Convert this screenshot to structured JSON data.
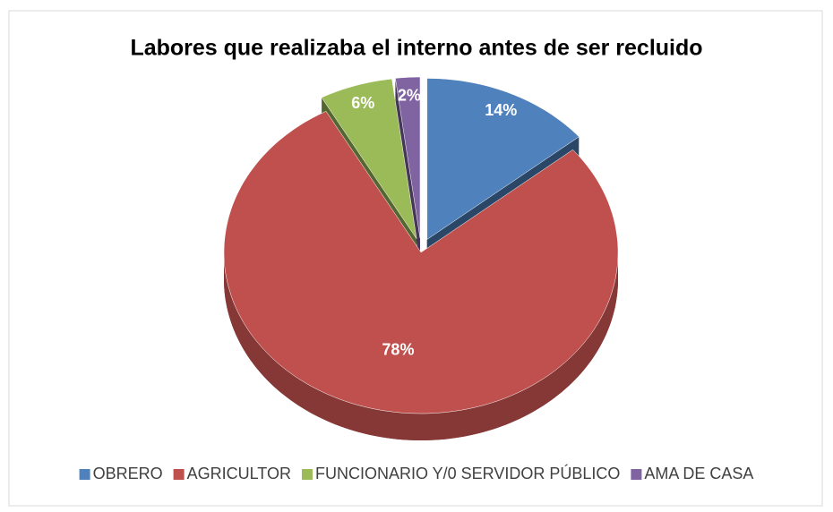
{
  "chart_data": {
    "type": "pie",
    "title": "Labores que realizaba el interno antes de ser recluido",
    "categories": [
      "OBRERO",
      "AGRICULTOR",
      "FUNCIONARIO Y/0 SERVIDOR PÚBLICO",
      "AMA DE CASA"
    ],
    "values": [
      14,
      78,
      6,
      2
    ],
    "value_labels": [
      "14%",
      "78%",
      "6%",
      "2%"
    ],
    "colors": [
      "#4f81bd",
      "#c0504d",
      "#9bbb59",
      "#8064a2"
    ],
    "legend": "bottom"
  }
}
